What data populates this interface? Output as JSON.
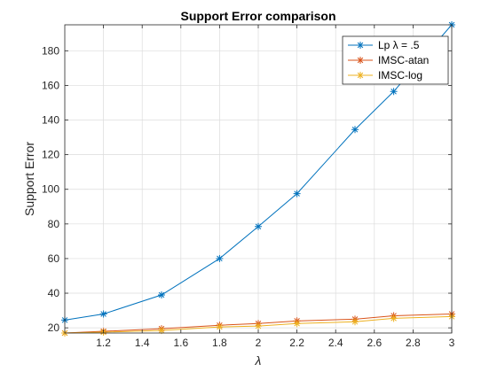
{
  "chart_data": {
    "type": "line",
    "title": "Support Error comparison",
    "xlabel": "λ",
    "ylabel": "Support Error",
    "xlim": [
      1.0,
      3.0
    ],
    "ylim": [
      17,
      195
    ],
    "xticks": [
      1.2,
      1.4,
      1.6,
      1.8,
      2,
      2.2,
      2.4,
      2.6,
      2.8,
      3
    ],
    "yticks": [
      20,
      40,
      60,
      80,
      100,
      120,
      140,
      160,
      180
    ],
    "grid": true,
    "legend_position": "top-right",
    "x": [
      1.0,
      1.2,
      1.5,
      1.8,
      2.0,
      2.2,
      2.5,
      2.7,
      3.0
    ],
    "series": [
      {
        "name": "Lp λ = .5",
        "color": "#0072BD",
        "marker": "asterisk",
        "values": [
          24.5,
          28,
          39,
          60,
          78.5,
          97.5,
          134.5,
          156.5,
          195
        ]
      },
      {
        "name": "IMSC-atan",
        "color": "#D95319",
        "marker": "asterisk",
        "values": [
          17,
          18,
          19.5,
          21.5,
          22.5,
          24,
          25,
          27,
          28
        ]
      },
      {
        "name": "IMSC-log",
        "color": "#EDB120",
        "marker": "asterisk",
        "values": [
          17,
          17.5,
          18.5,
          20.5,
          21,
          22.5,
          23.5,
          25.5,
          26.5
        ]
      }
    ]
  }
}
